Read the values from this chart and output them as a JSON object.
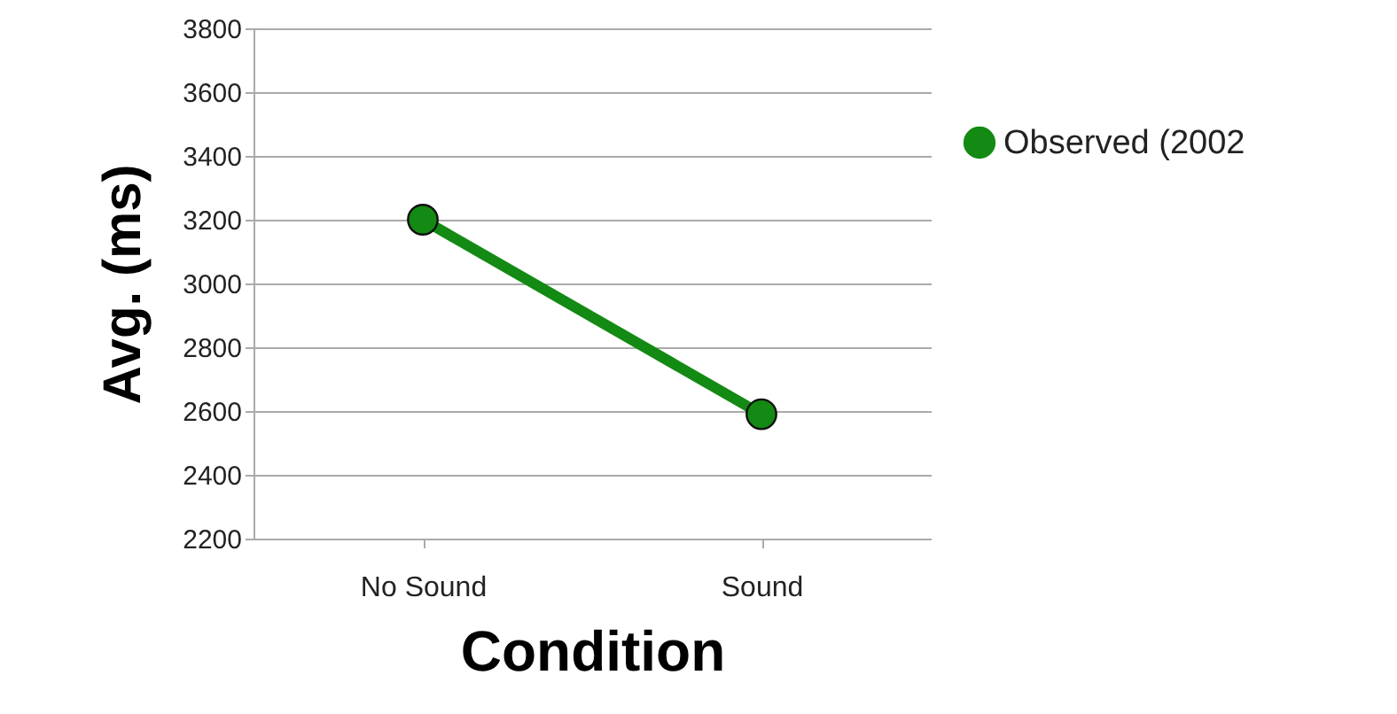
{
  "chart_data": {
    "type": "line",
    "xlabel": "Condition",
    "ylabel": "Avg. (ms)",
    "categories": [
      "No Sound",
      "Sound"
    ],
    "series": [
      {
        "name": "Observed (2002",
        "color": "#138a13",
        "values": [
          3200,
          2590
        ]
      }
    ],
    "ylim": [
      2200,
      3800
    ],
    "yticks": [
      2200,
      2400,
      2600,
      2800,
      3000,
      3200,
      3400,
      3600,
      3800
    ],
    "grid": "y",
    "legend": "right",
    "marker": "circle",
    "line_style": "solid"
  }
}
